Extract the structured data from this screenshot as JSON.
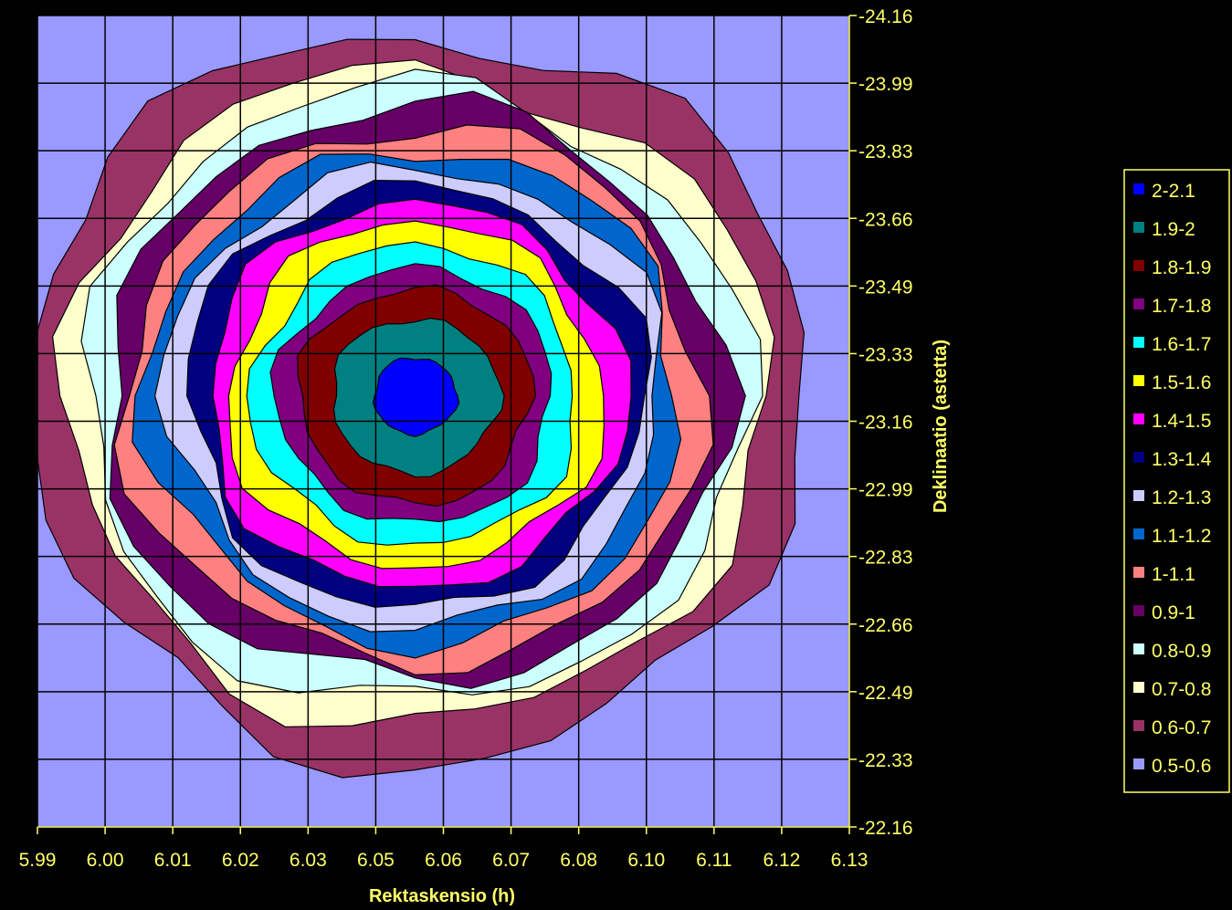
{
  "chart_data": {
    "type": "contour",
    "xlabel": "Rektaskensio (h)",
    "ylabel": "Deklinaatio (astetta)",
    "x_ticks": [
      "5.99",
      "6.00",
      "6.01",
      "6.02",
      "6.03",
      "6.05",
      "6.06",
      "6.07",
      "6.08",
      "6.10",
      "6.11",
      "6.12",
      "6.13"
    ],
    "y_ticks": [
      "24.16",
      "23.99",
      "23.83",
      "23.66",
      "23.49",
      "23.33",
      "23.16",
      "22.99",
      "22.83",
      "22.66",
      "22.49",
      "22.33",
      "22.16"
    ],
    "xlim": [
      5.99,
      6.13
    ],
    "ylim": [
      22.16,
      24.16
    ],
    "grid": true,
    "legend_position": "right",
    "levels": [
      {
        "label": "2-2.1",
        "color": "#0000ff"
      },
      {
        "label": "1.9-2",
        "color": "#008080"
      },
      {
        "label": "1.8-1.9",
        "color": "#800000"
      },
      {
        "label": "1.7-1.8",
        "color": "#800080"
      },
      {
        "label": "1.6-1.7",
        "color": "#00ffff"
      },
      {
        "label": "1.5-1.6",
        "color": "#ffff00"
      },
      {
        "label": "1.4-1.5",
        "color": "#ff00ff"
      },
      {
        "label": "1.3-1.4",
        "color": "#000080"
      },
      {
        "label": "1.2-1.3",
        "color": "#ccccff"
      },
      {
        "label": "1.1-1.2",
        "color": "#0066cc"
      },
      {
        "label": "1-1.1",
        "color": "#ff8080"
      },
      {
        "label": "0.9-1",
        "color": "#660066"
      },
      {
        "label": "0.8-0.9",
        "color": "#ccffff"
      },
      {
        "label": "0.7-0.8",
        "color": "#ffffcc"
      },
      {
        "label": "0.6-0.7",
        "color": "#993366"
      },
      {
        "label": "0.5-0.6",
        "color": "#9999ff"
      }
    ],
    "peak_center": {
      "x": 6.052,
      "y": 23.2
    },
    "peak_value_range": "2-2.1"
  }
}
